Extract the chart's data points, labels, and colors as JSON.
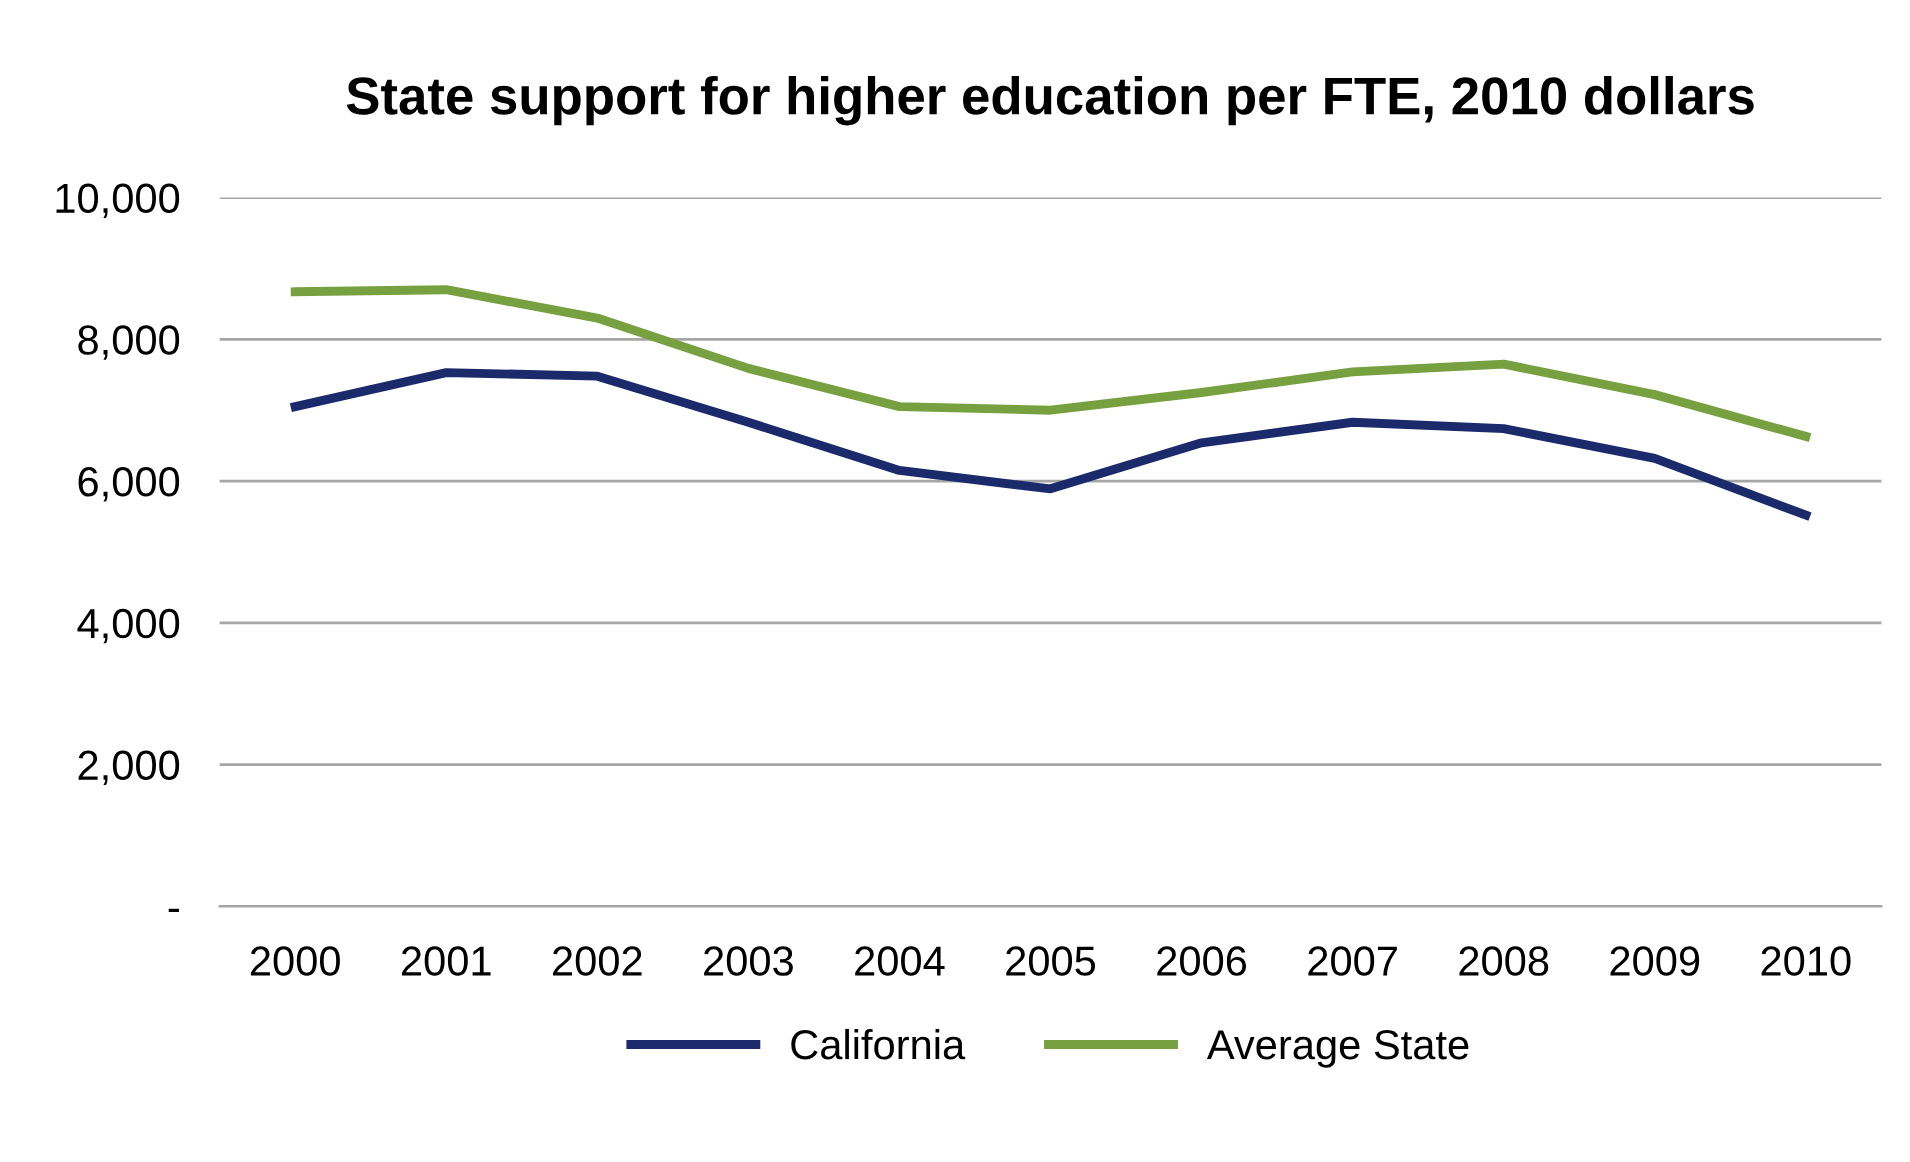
{
  "chart_data": {
    "type": "line",
    "title": "State support for higher education per FTE, 2010 dollars",
    "categories": [
      "2000",
      "2001",
      "2002",
      "2003",
      "2004",
      "2005",
      "2006",
      "2007",
      "2008",
      "2009",
      "2010"
    ],
    "series": [
      {
        "name": "California",
        "color": "#1b2a6b",
        "values": [
          7050,
          7530,
          7480,
          6830,
          6150,
          5890,
          6540,
          6830,
          6740,
          6320,
          5520
        ]
      },
      {
        "name": "Average State",
        "color": "#77a040",
        "values": [
          8670,
          8700,
          8300,
          7590,
          7050,
          7000,
          7250,
          7540,
          7650,
          7220,
          6630
        ]
      }
    ],
    "ylim": [
      0,
      10000
    ],
    "yticks": [
      {
        "value": 0,
        "label": "-"
      },
      {
        "value": 2000,
        "label": "2,000"
      },
      {
        "value": 4000,
        "label": "4,000"
      },
      {
        "value": 6000,
        "label": "6,000"
      },
      {
        "value": 8000,
        "label": "8,000"
      },
      {
        "value": 10000,
        "label": "10,000"
      }
    ],
    "grid": "y",
    "legend": "bottom",
    "marker": "none",
    "line_style": "solid"
  }
}
